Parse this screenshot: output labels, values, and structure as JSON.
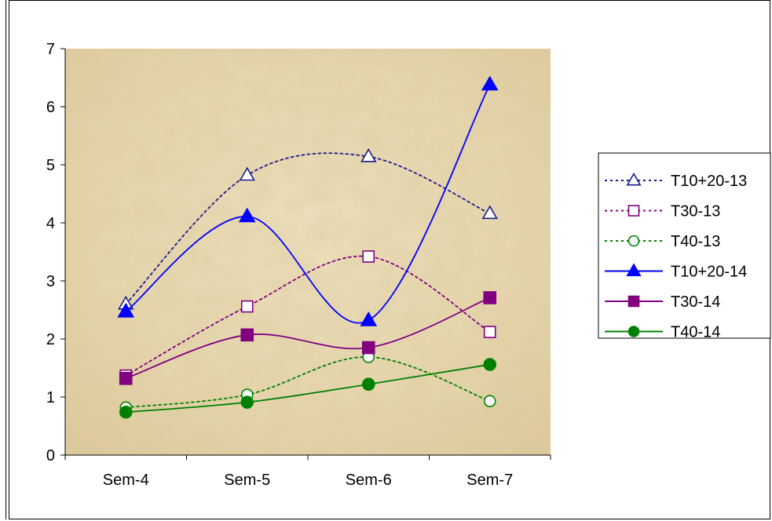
{
  "chart_data": {
    "type": "line",
    "categories": [
      "Sem-4",
      "Sem-5",
      "Sem-6",
      "Sem-7"
    ],
    "ylim": [
      0,
      7
    ],
    "yticks": [
      0,
      1,
      2,
      3,
      4,
      5,
      6,
      7
    ],
    "ytick_labels": [
      "0",
      "1",
      "2",
      "3",
      "4",
      "5",
      "6",
      "7"
    ],
    "grid": false,
    "legend_position": "right",
    "plot_background": "textured sand",
    "series": [
      {
        "name": "T10+20-13",
        "values": [
          2.6,
          4.82,
          5.14,
          4.16
        ],
        "color": "#1a1a8c",
        "dash": "dotted",
        "marker": "triangle",
        "filled": false
      },
      {
        "name": "T30-13",
        "values": [
          1.37,
          2.56,
          3.42,
          2.12
        ],
        "color": "#800080",
        "dash": "dotted",
        "marker": "square",
        "filled": false
      },
      {
        "name": "T40-13",
        "values": [
          0.82,
          1.04,
          1.69,
          0.93
        ],
        "color": "#008000",
        "dash": "dotted",
        "marker": "circle",
        "filled": false
      },
      {
        "name": "T10+20-14",
        "values": [
          2.47,
          4.11,
          2.32,
          6.38
        ],
        "color": "#0000ff",
        "dash": "solid",
        "marker": "triangle",
        "filled": true
      },
      {
        "name": "T30-14",
        "values": [
          1.32,
          2.07,
          1.85,
          2.71
        ],
        "color": "#800080",
        "dash": "solid",
        "marker": "square",
        "filled": true
      },
      {
        "name": "T40-14",
        "values": [
          0.74,
          0.91,
          1.22,
          1.56
        ],
        "color": "#008000",
        "dash": "solid",
        "marker": "circle",
        "filled": true
      }
    ]
  }
}
